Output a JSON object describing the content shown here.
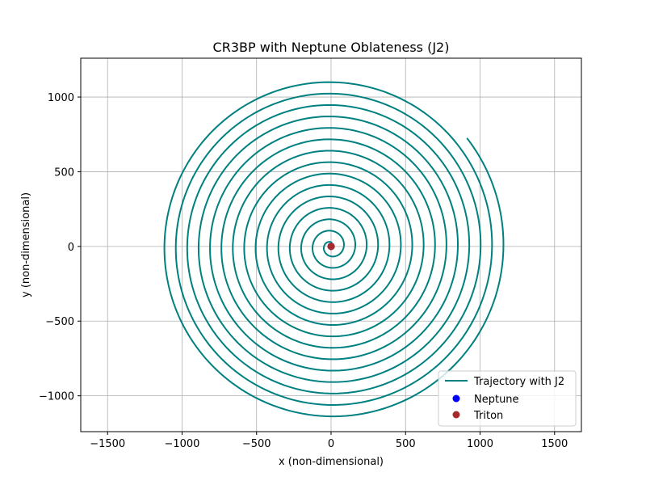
{
  "chart_data": {
    "type": "line",
    "title": "CR3BP with Neptune Oblateness (J2)",
    "xlabel": "x (non-dimensional)",
    "ylabel": "y (non-dimensional)",
    "xlim": [
      -1680,
      1680
    ],
    "ylim": [
      -1240,
      1260
    ],
    "xticks": [
      -1500,
      -1000,
      -500,
      0,
      500,
      1000,
      1500
    ],
    "yticks": [
      -1000,
      -500,
      0,
      500,
      1000
    ],
    "xtick_labels": [
      "−1500",
      "−1000",
      "−500",
      "0",
      "500",
      "1000",
      "1500"
    ],
    "ytick_labels": [
      "−1000",
      "−500",
      "0",
      "500",
      "1000"
    ],
    "grid": true,
    "legend_position": "lower-right",
    "series": [
      {
        "name": "Trajectory with J2",
        "kind": "line",
        "color": "#008080",
        "spiral": {
          "center": [
            0,
            0
          ],
          "r_start": 25,
          "r_end": 1165,
          "turns": 14.9,
          "end_angle_deg": 38.5
        }
      },
      {
        "name": "Neptune",
        "kind": "point",
        "color": "#0000ff",
        "x": 0,
        "y": 0
      },
      {
        "name": "Triton",
        "kind": "point",
        "color": "#a52a2a",
        "x": 1,
        "y": 0
      }
    ]
  }
}
